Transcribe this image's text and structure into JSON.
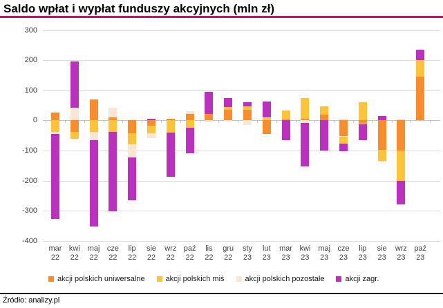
{
  "header": {
    "title": "Saldo wpłat i wypłat funduszy akcyjnych (mln zł)"
  },
  "footer": {
    "source": "Źródło: analizy.pl"
  },
  "colors": {
    "accent_line": "#C51167",
    "grid": "#D9D9D9",
    "zero_axis": "#C3C3C3",
    "axis_text": "#3F3F3F"
  },
  "chart_data": {
    "type": "bar",
    "stacked": true,
    "title": "Saldo wpłat i wypłat funduszy akcyjnych (mln zł)",
    "ylabel": "mln zł",
    "xlabel": "",
    "grid": true,
    "legend_position": "bottom",
    "ylim": [
      -400,
      300
    ],
    "ytick_step": 100,
    "yticks": [
      300,
      200,
      100,
      0,
      -100,
      -200,
      -300,
      -400
    ],
    "categories": [
      "mar 22",
      "kwi 22",
      "maj 22",
      "cze 22",
      "lip 22",
      "sie 22",
      "wrz 22",
      "paź 22",
      "lis 22",
      "gru 22",
      "sty 23",
      "lut 23",
      "mar 23",
      "kwi 23",
      "maj 23",
      "cze 23",
      "lip 23",
      "sie 23",
      "wrz 23",
      "paź 23"
    ],
    "series": [
      {
        "name": "akcji polskich uniwersalne",
        "color": "#F98C2B",
        "values": [
          26,
          -38,
          70,
          9,
          -42,
          -18,
          5,
          21,
          21,
          36,
          36,
          -46,
          4,
          6,
          19,
          -53,
          -10,
          -97,
          -101,
          145
        ]
      },
      {
        "name": "akcji polskich miś",
        "color": "#FEC337",
        "values": [
          -37,
          -23,
          -38,
          -38,
          -38,
          -24,
          -40,
          -25,
          0,
          8,
          11,
          9,
          29,
          69,
          27,
          -23,
          60,
          -37,
          -100,
          55
        ]
      },
      {
        "name": "akcji polskich pozostałe",
        "color": "#FBE5D5",
        "values": [
          -9,
          42,
          -28,
          34,
          -44,
          -17,
          0,
          10,
          -5,
          -4,
          -15,
          2,
          0,
          -9,
          0,
          6,
          -3,
          -5,
          6,
          0
        ]
      },
      {
        "name": "akcji zagr.",
        "color": "#BB30BE",
        "values": [
          -282,
          154,
          -286,
          -263,
          -141,
          6,
          -148,
          -85,
          73,
          30,
          14,
          52,
          -66,
          -143,
          -101,
          -27,
          -52,
          15,
          -78,
          34
        ]
      }
    ]
  }
}
